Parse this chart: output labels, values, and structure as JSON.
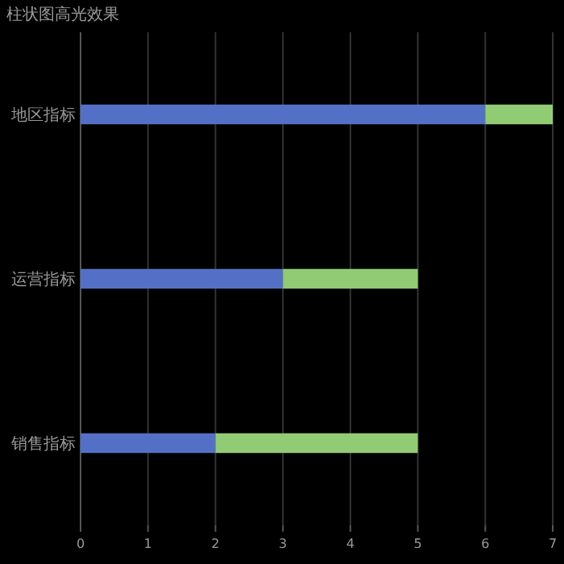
{
  "chart_data": {
    "type": "bar",
    "title": "柱状图高光效果",
    "orientation": "horizontal",
    "stacked": true,
    "categories": [
      "地区指标",
      "运营指标",
      "销售指标"
    ],
    "series": [
      {
        "color": "#5470c6",
        "values": [
          6,
          3,
          2
        ]
      },
      {
        "color": "#91cc75",
        "values": [
          1,
          2,
          3
        ]
      }
    ],
    "xlim": [
      0,
      7
    ],
    "xticks": [
      0,
      1,
      2,
      3,
      4,
      5,
      6,
      7
    ],
    "grid": "x"
  }
}
